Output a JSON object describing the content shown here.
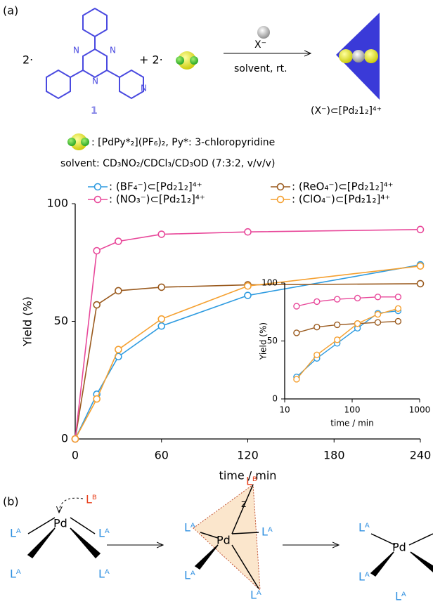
{
  "panel_a": {
    "label": "(a)",
    "coefficient_1": "2·",
    "coefficient_2": "+ 2·",
    "ligand_number": "1",
    "atom_label": "N",
    "anion": "X⁻",
    "conditions": "solvent,  rt.",
    "product": "(X⁻)⊂[Pd₂1₂]⁴⁺",
    "legend": ": [PdPy*₂](PF₆)₂, Py*: 3-chloropyridine",
    "solvent": "solvent: CD₃NO₂/CDCl₃/CD₃OD (7:3:2, v/v/v)"
  },
  "chart_data": [
    {
      "type": "line",
      "x_label": "time / min",
      "y_label": "Yield (%)",
      "legend": true,
      "x": [
        0,
        15,
        30,
        60,
        120,
        240
      ],
      "series": [
        {
          "name": ": (BF₄⁻)⊂[Pd₂1₂]⁴⁺",
          "color": "#2e9be0",
          "values": [
            0,
            19,
            35,
            48,
            61,
            74
          ]
        },
        {
          "name": ": (ReO₄⁻)⊂[Pd₂1₂]⁴⁺",
          "color": "#9a5a1e",
          "values": [
            0,
            57,
            63,
            64.5,
            65.5,
            66
          ]
        },
        {
          "name": ": (NO₃⁻)⊂[Pd₂1₂]⁴⁺",
          "color": "#e8489a",
          "values": [
            0,
            80,
            84,
            87,
            88,
            89
          ]
        },
        {
          "name": ": (ClO₄⁻)⊂[Pd₂1₂]⁴⁺",
          "color": "#f5a030",
          "values": [
            0,
            17,
            38,
            51,
            65,
            73.5
          ]
        }
      ],
      "xlim": [
        0,
        240
      ],
      "xticks": [
        0,
        60,
        120,
        180,
        240
      ],
      "ylim": [
        0,
        100
      ],
      "yticks": [
        0,
        50,
        100
      ]
    },
    {
      "type": "line",
      "x_label": "time / min",
      "y_label": "Yield (%)",
      "log_x": true,
      "x": [
        15,
        30,
        60,
        120,
        240,
        480
      ],
      "series": [
        {
          "color": "#2e9be0",
          "values": [
            19,
            35,
            48,
            61,
            74,
            76
          ]
        },
        {
          "color": "#9a5a1e",
          "values": [
            57,
            62,
            64,
            65,
            66,
            67
          ]
        },
        {
          "color": "#e8489a",
          "values": [
            80,
            84,
            86,
            87,
            88,
            88
          ]
        },
        {
          "color": "#f5a030",
          "values": [
            17,
            38,
            51,
            65,
            73,
            78
          ]
        }
      ],
      "xlim": [
        10,
        1000
      ],
      "xticks": [
        10,
        100,
        1000
      ],
      "ylim": [
        0,
        100
      ],
      "yticks": [
        0,
        50,
        100
      ]
    }
  ],
  "panel_b": {
    "label": "(b)",
    "incoming_ligand": "Lᴮ",
    "ligand": "Lᴬ",
    "metal": "Pd",
    "axis_label": "z"
  }
}
